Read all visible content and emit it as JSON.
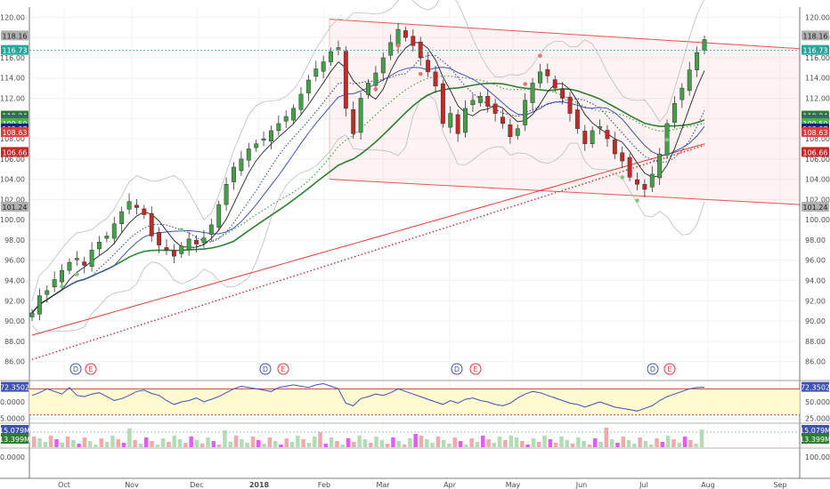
{
  "chart_data": {
    "type": "candlestick",
    "main_panel": {
      "y_axis_ticks": [
        "120.00",
        "118.00",
        "116.00",
        "114.00",
        "112.00",
        "110.00",
        "108.00",
        "106.00",
        "104.00",
        "102.00",
        "100.00",
        "98.00",
        "96.00",
        "94.00",
        "92.00",
        "90.00",
        "88.00",
        "86.00"
      ],
      "ylim": [
        85,
        121
      ],
      "x_axis_ticks": [
        "Oct",
        "Nov",
        "Dec",
        "2018",
        "Feb",
        "Mar",
        "Apr",
        "May",
        "Jun",
        "Jul",
        "Aug",
        "Sep"
      ],
      "price_labels": [
        {
          "text": "118.16",
          "value": 118.16,
          "color": "#b0b0b0"
        },
        {
          "text": "116.73",
          "value": 116.73,
          "color": "#26a69a"
        },
        {
          "text": "110.24",
          "value": 110.24,
          "color": "#2e7d32"
        },
        {
          "text": "109.85",
          "value": 109.85,
          "color": "#3f51b5"
        },
        {
          "text": "109.70",
          "value": 109.7,
          "color": "#2e7d32"
        },
        {
          "text": "109.50",
          "value": 109.5,
          "color": "#4caf50"
        },
        {
          "text": "108.97",
          "value": 108.97,
          "color": "#1a237e"
        },
        {
          "text": "108.63",
          "value": 108.63,
          "color": "#e53935"
        },
        {
          "text": "106.66",
          "value": 106.66,
          "color": "#c62828"
        },
        {
          "text": "101.24",
          "value": 101.24,
          "color": "#b0b0b0"
        }
      ],
      "events": [
        {
          "label": "D",
          "color": "#3f51b5"
        },
        {
          "label": "E",
          "color": "#e53935"
        },
        {
          "label": "D",
          "color": "#3f51b5"
        },
        {
          "label": "E",
          "color": "#e53935"
        },
        {
          "label": "D",
          "color": "#3f51b5"
        },
        {
          "label": "E",
          "color": "#e53935"
        },
        {
          "label": "D",
          "color": "#3f51b5"
        },
        {
          "label": "E",
          "color": "#e53935"
        }
      ],
      "channel": {
        "upper": [
          119.8,
          116.9
        ],
        "lower": [
          104.0,
          101.5
        ],
        "color": "#ef5350"
      },
      "price_series": [
        90.8,
        92.5,
        93.0,
        94.1,
        95.0,
        95.8,
        96.2,
        95.5,
        97.0,
        97.8,
        98.4,
        99.6,
        100.8,
        101.8,
        101.2,
        100.5,
        98.4,
        97.5,
        97.0,
        96.4,
        97.4,
        98.1,
        97.6,
        98.2,
        99.5,
        101.5,
        103.5,
        105.2,
        106.0,
        107.0,
        107.5,
        108.0,
        108.8,
        109.5,
        110.2,
        111.0,
        112.4,
        113.8,
        114.9,
        115.6,
        116.6,
        117.0,
        111.0,
        108.5,
        112.0,
        113.5,
        114.5,
        116.0,
        117.5,
        118.8,
        118.0,
        117.2,
        116.0,
        114.6,
        113.2,
        109.5,
        110.5,
        108.5,
        111.0,
        111.8,
        112.2,
        111.2,
        110.5,
        109.5,
        108.2,
        109.0,
        111.8,
        113.5,
        114.6,
        114.2,
        113.0,
        112.0,
        110.5,
        109.0,
        107.5,
        108.8,
        109.2,
        108.0,
        106.5,
        105.8,
        104.2,
        103.5,
        103.0,
        104.5,
        106.5,
        109.5,
        111.5,
        113.0,
        114.8,
        116.5,
        117.8
      ]
    },
    "rsi_panel": {
      "y_axis_ticks": [
        "50.0000",
        "25.0000"
      ],
      "current_label": "72.3502",
      "ylim": [
        20,
        80
      ],
      "series": [
        60,
        64,
        70,
        66,
        62,
        72,
        60,
        58,
        62,
        64,
        58,
        52,
        55,
        60,
        66,
        68,
        63,
        60,
        52,
        46,
        50,
        52,
        56,
        50,
        54,
        58,
        64,
        70,
        74,
        72,
        70,
        68,
        66,
        72,
        74,
        76,
        74,
        72,
        76,
        78,
        74,
        70,
        48,
        44,
        55,
        58,
        62,
        60,
        64,
        70,
        66,
        62,
        58,
        54,
        50,
        46,
        52,
        48,
        54,
        56,
        52,
        50,
        46,
        44,
        48,
        56,
        62,
        66,
        64,
        60,
        56,
        52,
        48,
        46,
        42,
        46,
        50,
        46,
        42,
        40,
        38,
        36,
        40,
        44,
        52,
        58,
        62,
        66,
        70,
        72,
        72.35
      ]
    },
    "volume_panel": {
      "labels": [
        "15.079M",
        "13.399M"
      ],
      "bottom_tick": "100.0000"
    }
  }
}
